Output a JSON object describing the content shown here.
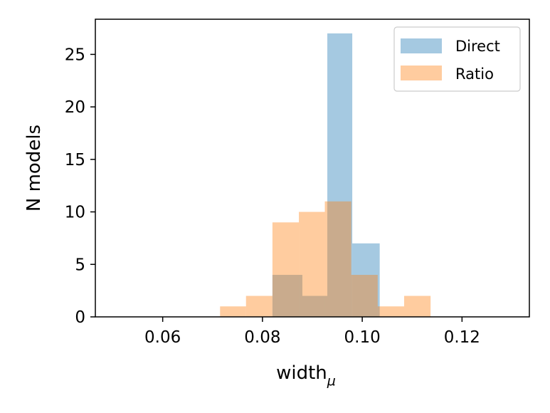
{
  "chart_data": {
    "type": "histogram",
    "xlabel": "width",
    "xlabel_subscript": "μ",
    "ylabel": "N models",
    "xlim": [
      0.0465,
      0.1335
    ],
    "ylim": [
      0,
      28.35
    ],
    "xticks": [
      0.06,
      0.08,
      0.1,
      0.12
    ],
    "xtick_labels": [
      "0.06",
      "0.08",
      "0.10",
      "0.12"
    ],
    "yticks": [
      0,
      5,
      10,
      15,
      20,
      25
    ],
    "ytick_labels": [
      "0",
      "5",
      "10",
      "15",
      "20",
      "25"
    ],
    "legend_position": "top-right",
    "series": [
      {
        "name": "Direct",
        "color": "#1f77b4",
        "alpha": 0.4,
        "bins": [
          {
            "x0": 0.082,
            "x1": 0.088,
            "count": 4
          },
          {
            "x0": 0.088,
            "x1": 0.093,
            "count": 2
          },
          {
            "x0": 0.093,
            "x1": 0.098,
            "count": 27
          },
          {
            "x0": 0.098,
            "x1": 0.1035,
            "count": 7
          }
        ]
      },
      {
        "name": "Ratio",
        "color": "#ff7f0e",
        "alpha": 0.4,
        "bins": [
          {
            "x0": 0.0715,
            "x1": 0.0767,
            "count": 1
          },
          {
            "x0": 0.0767,
            "x1": 0.082,
            "count": 2
          },
          {
            "x0": 0.082,
            "x1": 0.0873,
            "count": 9
          },
          {
            "x0": 0.0873,
            "x1": 0.0925,
            "count": 10
          },
          {
            "x0": 0.0925,
            "x1": 0.0978,
            "count": 11
          },
          {
            "x0": 0.0978,
            "x1": 0.1031,
            "count": 4
          },
          {
            "x0": 0.1031,
            "x1": 0.1084,
            "count": 1
          },
          {
            "x0": 0.1084,
            "x1": 0.1137,
            "count": 2
          }
        ]
      }
    ]
  }
}
